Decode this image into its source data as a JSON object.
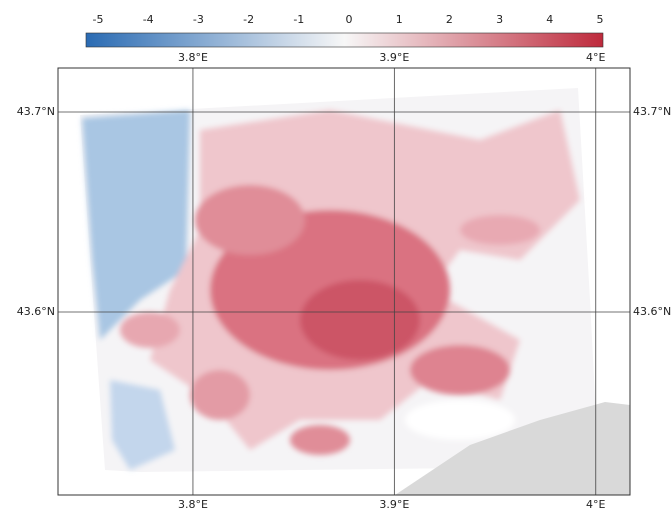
{
  "map": {
    "colorbar": {
      "lim": [
        -5,
        5
      ],
      "ticks": [
        -5,
        -4,
        -3,
        -2,
        -1,
        0,
        1,
        2,
        3,
        4,
        5
      ],
      "colors": [
        "#2a6bb3",
        "#f7f7f7",
        "#be2a3c"
      ]
    },
    "xlim": [
      3.733,
      4.017
    ],
    "ylim": [
      43.5085,
      43.722
    ],
    "xticks": [
      {
        "value": 3.8,
        "label": "3.8°E"
      },
      {
        "value": 3.9,
        "label": "3.9°E"
      },
      {
        "value": 4,
        "label": "4°E"
      }
    ],
    "yticks": [
      {
        "value": 43.7,
        "label": "43.7°N"
      },
      {
        "value": 43.6,
        "label": "43.6°N"
      }
    ],
    "land_color": "#d9d9d9"
  }
}
